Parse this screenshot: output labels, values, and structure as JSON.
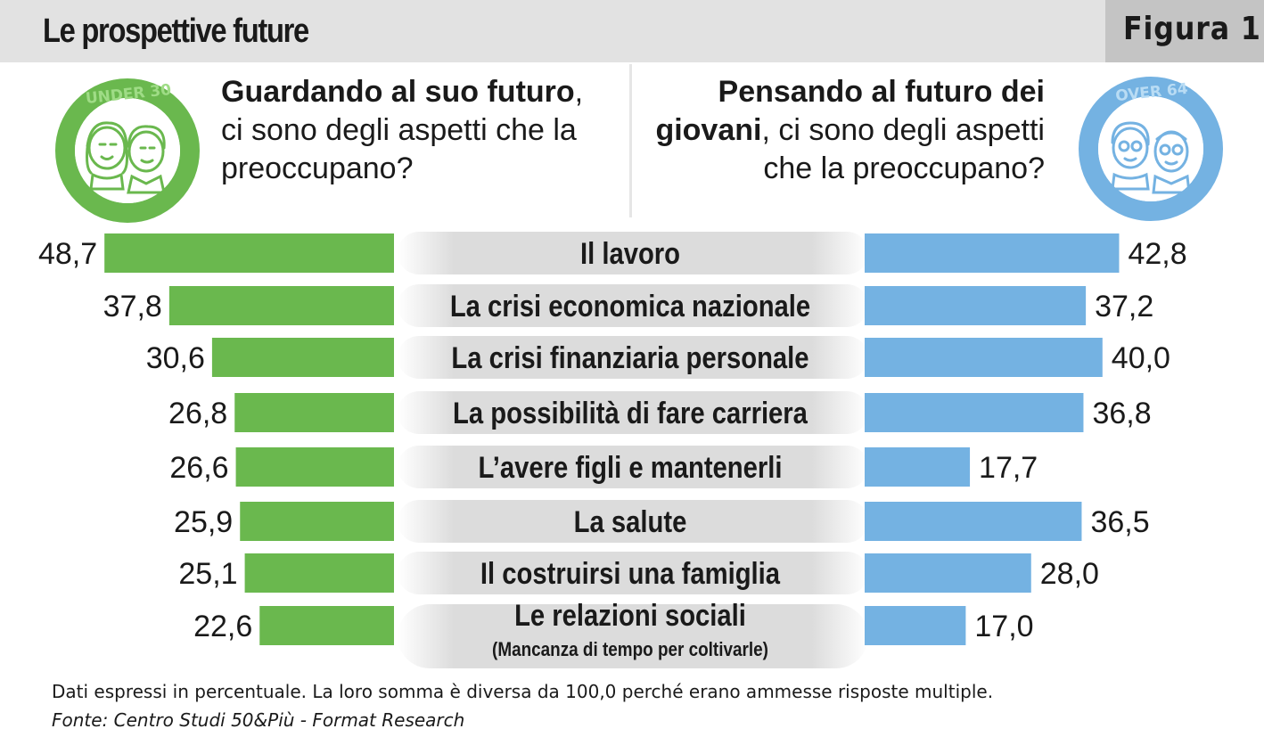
{
  "header": {
    "title": "Le prospettive future",
    "figure_label": "Figura 1"
  },
  "badges": {
    "left": "UNDER 30",
    "right": "OVER 64"
  },
  "questions": {
    "left_bold": "Guardando al suo futuro",
    "left_rest": ", ci sono degli aspetti che la preoccupano?",
    "right_bold": "Pensando al futuro dei giovani",
    "right_rest": ", ci sono degli aspetti che la preoccupano?"
  },
  "colors": {
    "left_series": "#6ab84e",
    "right_series": "#74b2e2",
    "label_pill": "#dcdcdc"
  },
  "chart_data": {
    "type": "bar",
    "orientation": "horizontal-butterfly",
    "categories": [
      "Il lavoro",
      "La crisi economica nazionale",
      "La crisi finanziaria personale",
      "La possibilità di fare carriera",
      "L’avere figli e mantenerli",
      "La salute",
      "Il costruirsi una famiglia",
      "Le relazioni sociali"
    ],
    "category_notes": [
      "",
      "",
      "",
      "",
      "",
      "",
      "",
      "(Mancanza di tempo per coltivarle)"
    ],
    "series": [
      {
        "values": [
          48.7,
          37.8,
          30.6,
          26.8,
          26.6,
          25.9,
          25.1,
          22.6
        ]
      },
      {
        "values": [
          42.8,
          37.2,
          40.0,
          36.8,
          17.7,
          36.5,
          28.0,
          17.0
        ]
      }
    ],
    "value_labels_left": [
      "48,7",
      "37,8",
      "30,6",
      "26,8",
      "26,6",
      "25,9",
      "25,1",
      "22,6"
    ],
    "value_labels_right": [
      "42,8",
      "37,2",
      "40,0",
      "36,8",
      "17,7",
      "36,5",
      "28,0",
      "17,0"
    ],
    "xlim": [
      0,
      50
    ]
  },
  "footer": {
    "note": "Dati espressi in percentuale. La loro somma è diversa da 100,0 perché erano ammesse risposte multiple.",
    "source": "Fonte: Centro Studi 50&Più - Format Research"
  }
}
